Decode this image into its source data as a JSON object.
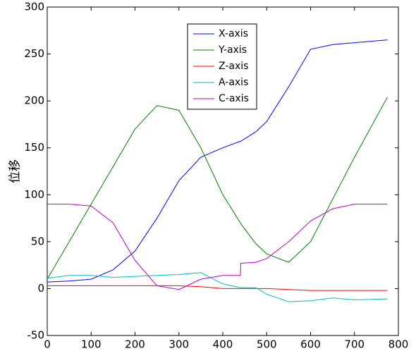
{
  "chart_data": {
    "type": "line",
    "y_label": "位移",
    "x": [
      0,
      50,
      100,
      150,
      200,
      250,
      300,
      350,
      400,
      440,
      441,
      475,
      500,
      550,
      600,
      650,
      700,
      775
    ],
    "series": [
      {
        "name": "X-axis",
        "color": "#0000ff",
        "values": [
          7,
          8,
          10,
          20,
          40,
          75,
          115,
          140,
          150,
          157,
          157,
          167,
          178,
          215,
          255,
          260,
          262,
          265
        ]
      },
      {
        "name": "Y-axis",
        "color": "#008000",
        "values": [
          10,
          50,
          90,
          130,
          170,
          195,
          190,
          150,
          100,
          70,
          69,
          48,
          37,
          28,
          50,
          95,
          140,
          204
        ]
      },
      {
        "name": "Z-axis",
        "color": "#ff0000",
        "values": [
          3,
          3,
          3,
          3,
          3,
          3,
          3,
          2,
          0,
          0,
          0,
          0,
          0,
          -1,
          -2,
          -2,
          -2,
          -2
        ]
      },
      {
        "name": "A-axis",
        "color": "#00bfbf",
        "values": [
          11,
          14,
          14,
          12,
          13,
          14,
          15,
          17,
          5,
          1,
          1,
          1,
          -6,
          -14,
          -13,
          -10,
          -12,
          -11
        ]
      },
      {
        "name": "C-axis",
        "color": "#bf00bf",
        "values": [
          90,
          90,
          88,
          70,
          30,
          3,
          -1,
          10,
          14,
          14,
          27,
          28,
          32,
          50,
          72,
          85,
          90,
          90
        ]
      }
    ],
    "xlim": [
      0,
      800
    ],
    "ylim": [
      -50,
      300
    ],
    "xticks": [
      0,
      100,
      200,
      300,
      400,
      500,
      600,
      700,
      800
    ],
    "yticks": [
      -50,
      0,
      50,
      100,
      150,
      200,
      250,
      300
    ],
    "grid": false,
    "legend": "top-center"
  }
}
